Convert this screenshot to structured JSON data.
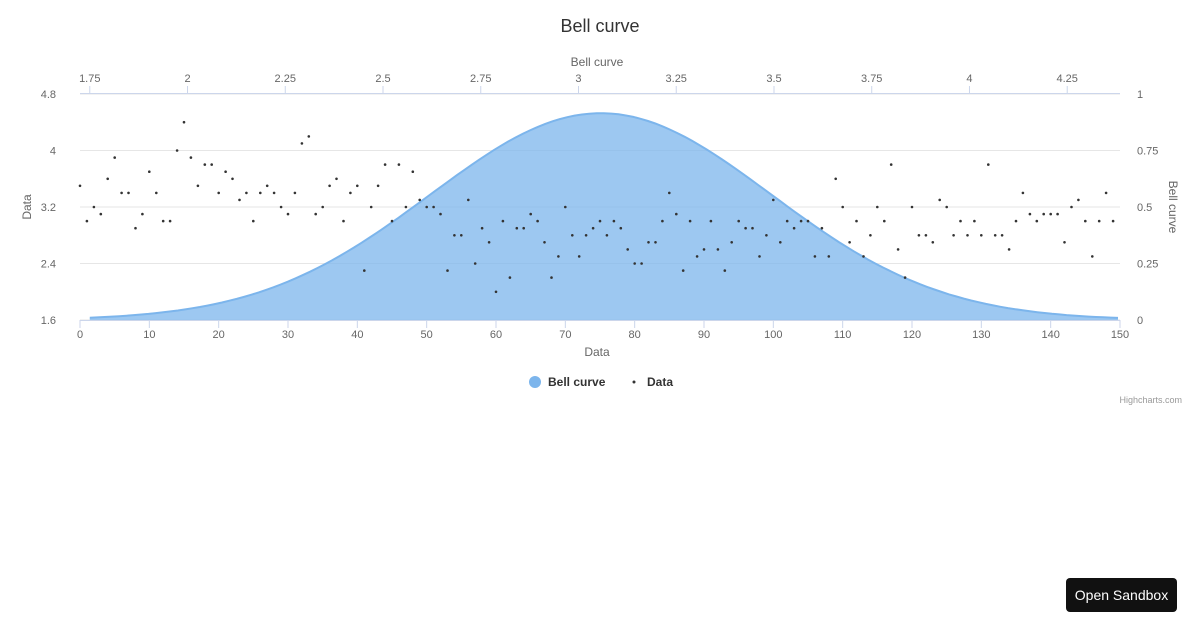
{
  "chart_data": {
    "type": "scatter",
    "title": "Bell curve",
    "xlabel": "Data",
    "ylabel": "Data",
    "x2label": "Bell curve",
    "y2label": "Bell curve",
    "xlim": [
      0,
      150
    ],
    "ylim": [
      1.6,
      4.8
    ],
    "x2lim": [
      1.725,
      4.385
    ],
    "y2lim": [
      0,
      1
    ],
    "x_ticks": [
      "0",
      "10",
      "20",
      "30",
      "40",
      "50",
      "60",
      "70",
      "80",
      "90",
      "100",
      "110",
      "120",
      "130",
      "140",
      "150"
    ],
    "y_ticks": [
      "1.6",
      "2.4",
      "3.2",
      "4",
      "4.8"
    ],
    "x2_ticks": [
      "1.75",
      "2",
      "2.25",
      "2.5",
      "2.75",
      "3",
      "3.25",
      "3.5",
      "3.75",
      "4",
      "4.25"
    ],
    "y2_ticks": [
      "0",
      "0.25",
      "0.5",
      "0.75",
      "1"
    ],
    "grid": true,
    "legend_position": "bottom-center",
    "series": [
      {
        "name": "Bell curve",
        "kind": "area",
        "axis": "secondary",
        "color": "#7cb5ec",
        "mean": 3.057,
        "stdev": 0.436,
        "peak": 0.915,
        "x_range": [
          1.75,
          4.38
        ]
      },
      {
        "name": "Data",
        "kind": "scatter",
        "axis": "primary",
        "color": "#333333",
        "values": [
          3.5,
          3.0,
          3.2,
          3.1,
          3.6,
          3.9,
          3.4,
          3.4,
          2.9,
          3.1,
          3.7,
          3.4,
          3.0,
          3.0,
          4.0,
          4.4,
          3.9,
          3.5,
          3.8,
          3.8,
          3.4,
          3.7,
          3.6,
          3.3,
          3.4,
          3.0,
          3.4,
          3.5,
          3.4,
          3.2,
          3.1,
          3.4,
          4.1,
          4.2,
          3.1,
          3.2,
          3.5,
          3.6,
          3.0,
          3.4,
          3.5,
          2.3,
          3.2,
          3.5,
          3.8,
          3.0,
          3.8,
          3.2,
          3.7,
          3.3,
          3.2,
          3.2,
          3.1,
          2.3,
          2.8,
          2.8,
          3.3,
          2.4,
          2.9,
          2.7,
          2.0,
          3.0,
          2.2,
          2.9,
          2.9,
          3.1,
          3.0,
          2.7,
          2.2,
          2.5,
          3.2,
          2.8,
          2.5,
          2.8,
          2.9,
          3.0,
          2.8,
          3.0,
          2.9,
          2.6,
          2.4,
          2.4,
          2.7,
          2.7,
          3.0,
          3.4,
          3.1,
          2.3,
          3.0,
          2.5,
          2.6,
          3.0,
          2.6,
          2.3,
          2.7,
          3.0,
          2.9,
          2.9,
          2.5,
          2.8,
          3.3,
          2.7,
          3.0,
          2.9,
          3.0,
          3.0,
          2.5,
          2.9,
          2.5,
          3.6,
          3.2,
          2.7,
          3.0,
          2.5,
          2.8,
          3.2,
          3.0,
          3.8,
          2.6,
          2.2,
          3.2,
          2.8,
          2.8,
          2.7,
          3.3,
          3.2,
          2.8,
          3.0,
          2.8,
          3.0,
          2.8,
          3.8,
          2.8,
          2.8,
          2.6,
          3.0,
          3.4,
          3.1,
          3.0,
          3.1,
          3.1,
          3.1,
          2.7,
          3.2,
          3.3,
          3.0,
          2.5,
          3.0,
          3.4,
          3.0
        ]
      }
    ]
  },
  "credits": "Highcharts.com",
  "sandbox_button": "Open Sandbox"
}
